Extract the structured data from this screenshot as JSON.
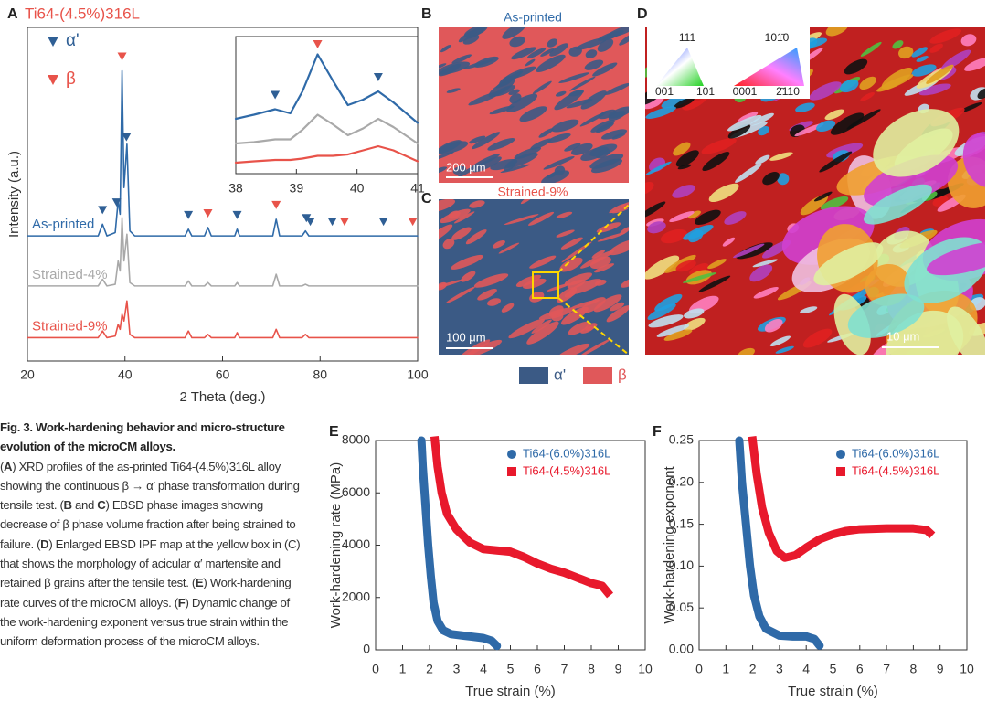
{
  "chart_data": [
    {
      "type": "line",
      "panel": "A",
      "title": "Ti64-(4.5%)316L",
      "xlabel": "2 Theta (deg.)",
      "ylabel": "Intensity (a.u.)",
      "xlim": [
        20,
        100
      ],
      "xticks": [
        20,
        40,
        60,
        80,
        100
      ],
      "ylim": [
        0,
        100
      ],
      "x": [
        20,
        34.5,
        35.4,
        36.3,
        38,
        38.6,
        39,
        39.4,
        39.8,
        40.4,
        41,
        42,
        52.3,
        53,
        53.7,
        56.3,
        57,
        57.7,
        62.5,
        63,
        63.5,
        70.3,
        71,
        71.7,
        76.3,
        77,
        77.7,
        100
      ],
      "series": [
        {
          "name": "As-printed",
          "color": "#2f6aa8",
          "values": [
            37.5,
            37.5,
            41,
            37.5,
            38.5,
            48,
            44,
            87,
            52,
            65,
            39,
            37.5,
            37.5,
            39.5,
            37.5,
            37.5,
            40,
            37.5,
            37.5,
            39.5,
            37.5,
            37.5,
            42.5,
            37.5,
            37.5,
            39,
            37.5,
            37.5
          ]
        },
        {
          "name": "Strained-4%",
          "color": "#a9a9a9",
          "values": [
            22.5,
            22.5,
            24.5,
            22.5,
            23,
            30,
            27,
            43,
            30,
            38,
            23.5,
            22.5,
            22.5,
            24,
            22.5,
            22.5,
            23.5,
            22.5,
            22.5,
            23.5,
            22.5,
            22.5,
            26,
            22.5,
            22.5,
            23,
            22.5,
            22.5
          ]
        },
        {
          "name": "Strained-9%",
          "color": "#e8534a",
          "values": [
            7,
            7,
            9,
            7,
            7.5,
            11,
            9.5,
            14,
            12,
            18,
            8,
            7,
            7,
            9,
            7,
            7,
            8,
            7,
            7,
            8.5,
            7,
            7,
            9.5,
            7,
            7,
            8,
            7,
            7
          ]
        }
      ],
      "peak_markers": [
        {
          "name": "α'",
          "color": "#2f5f95",
          "x": [
            35.4,
            38.3,
            40.3,
            53,
            63,
            77.2,
            78,
            82.5,
            93
          ]
        },
        {
          "name": "β",
          "color": "#e8534a",
          "x": [
            39.4,
            57,
            71,
            85,
            99
          ]
        }
      ]
    },
    {
      "type": "line",
      "xlim": [
        38,
        41
      ],
      "xticks": [
        38,
        39,
        40,
        41
      ],
      "ylim": [
        0,
        10
      ],
      "x": [
        38,
        38.3,
        38.65,
        38.9,
        39.1,
        39.35,
        39.6,
        39.85,
        40.1,
        40.35,
        40.6,
        41
      ],
      "series": [
        {
          "color": "#2f6aa8",
          "values": [
            4,
            4.3,
            4.7,
            4.4,
            6,
            8.7,
            6.8,
            5,
            5.4,
            6,
            5.2,
            3.7
          ]
        },
        {
          "color": "#a9a9a9",
          "values": [
            2.2,
            2.3,
            2.5,
            2.5,
            3.2,
            4.3,
            3.6,
            2.8,
            3.3,
            4,
            3.4,
            2.2
          ]
        },
        {
          "color": "#e8534a",
          "values": [
            0.8,
            0.9,
            1,
            1,
            1.1,
            1.3,
            1.3,
            1.4,
            1.7,
            2,
            1.7,
            0.9
          ]
        }
      ],
      "peak_markers": [
        {
          "color": "#2f5f95",
          "x": [
            38.65,
            40.35
          ]
        },
        {
          "color": "#e8534a",
          "x": [
            39.35
          ]
        }
      ]
    },
    {
      "type": "line",
      "panel": "E",
      "xlabel": "True strain (%)",
      "ylabel": "Work-hardening rate (MPa)",
      "xlim": [
        0,
        10
      ],
      "xticks": [
        0,
        1,
        2,
        3,
        4,
        5,
        6,
        7,
        8,
        9,
        10
      ],
      "ylim": [
        0,
        8000
      ],
      "yticks": [
        0,
        2000,
        4000,
        6000,
        8000
      ],
      "series": [
        {
          "name": "Ti64-(6.0%)316L",
          "color": "#2f6aa8",
          "marker": "circle",
          "x": [
            1.7,
            1.75,
            1.85,
            1.95,
            2.05,
            2.15,
            2.3,
            2.5,
            2.8,
            3.2,
            3.6,
            4,
            4.3,
            4.5
          ],
          "values": [
            8000,
            7000,
            5500,
            4000,
            2800,
            1800,
            1100,
            750,
            600,
            550,
            500,
            450,
            350,
            150
          ]
        },
        {
          "name": "Ti64-(4.5%)316L",
          "color": "#e8192c",
          "marker": "square",
          "x": [
            2.2,
            2.3,
            2.45,
            2.65,
            3,
            3.5,
            4,
            4.5,
            5,
            5.5,
            6,
            6.5,
            7,
            7.5,
            8,
            8.4,
            8.6
          ],
          "values": [
            8000,
            7000,
            6000,
            5200,
            4600,
            4100,
            3850,
            3800,
            3750,
            3550,
            3300,
            3100,
            2950,
            2750,
            2550,
            2450,
            2200
          ]
        }
      ]
    },
    {
      "type": "line",
      "panel": "F",
      "xlabel": "True strain (%)",
      "ylabel": "Work-hardening exponent",
      "xlim": [
        0,
        10
      ],
      "xticks": [
        0,
        1,
        2,
        3,
        4,
        5,
        6,
        7,
        8,
        9,
        10
      ],
      "ylim": [
        0,
        0.25
      ],
      "yticks": [
        {
          "value": 0,
          "label": "0.00"
        },
        {
          "value": 0.05,
          "label": "0.05"
        },
        {
          "value": 0.1,
          "label": "0.10"
        },
        {
          "value": 0.15,
          "label": "0.15"
        },
        {
          "value": 0.2,
          "label": "0.20"
        },
        {
          "value": 0.25,
          "label": "0.25"
        }
      ],
      "series": [
        {
          "name": "Ti64-(6.0%)316L",
          "color": "#2f6aa8",
          "marker": "circle",
          "x": [
            1.5,
            1.6,
            1.75,
            1.9,
            2.05,
            2.25,
            2.5,
            3,
            3.5,
            4,
            4.3,
            4.5
          ],
          "values": [
            0.25,
            0.2,
            0.15,
            0.1,
            0.065,
            0.04,
            0.025,
            0.017,
            0.016,
            0.016,
            0.013,
            0.005
          ]
        },
        {
          "name": "Ti64-(4.5%)316L",
          "color": "#e8192c",
          "marker": "square",
          "x": [
            2,
            2.15,
            2.35,
            2.6,
            2.9,
            3.2,
            3.6,
            4,
            4.5,
            5,
            5.5,
            6,
            7,
            8,
            8.5,
            8.6
          ],
          "values": [
            0.25,
            0.21,
            0.17,
            0.14,
            0.118,
            0.11,
            0.113,
            0.122,
            0.132,
            0.138,
            0.142,
            0.144,
            0.145,
            0.145,
            0.143,
            0.14
          ]
        }
      ]
    }
  ],
  "images": {
    "B": {
      "panel": "B",
      "label": "As-printed",
      "scale_bar": "200 μm"
    },
    "C": {
      "panel": "C",
      "label": "Strained-9%",
      "scale_bar": "100 μm"
    },
    "D": {
      "panel": "D",
      "scale_bar": "10 μm",
      "ipf_key_cubic": [
        "111",
        "001",
        "101"
      ],
      "ipf_key_hex": [
        "101̄0",
        "0001",
        "2̄110"
      ]
    },
    "phase_legend": [
      {
        "name": "α'",
        "color": "#3b5a85"
      },
      {
        "name": "β",
        "color": "#e0585a"
      }
    ]
  },
  "caption": {
    "title": "Fig. 3. Work-hardening behavior and micro-structure evolution of the microCM alloys.",
    "body": [
      "(",
      "A",
      ") XRD profiles of the as-printed Ti64-(4.5%)316L alloy showing the continuous β → α′ phase transformation during tensile test. (",
      "B",
      " and ",
      "C",
      ") EBSD phase images showing decrease of β phase volume fraction after being strained to failure. (",
      "D",
      ") Enlarged EBSD IPF map at the yellow box in (C) that shows the morphology of acicular α′ martensite and retained β grains after the tensile test. (",
      "E",
      ") Work-hardening rate curves of the microCM alloys. (",
      "F",
      ") Dynamic change of the work-hardening exponent versus true strain within the uniform deformation process of the microCM alloys."
    ]
  }
}
